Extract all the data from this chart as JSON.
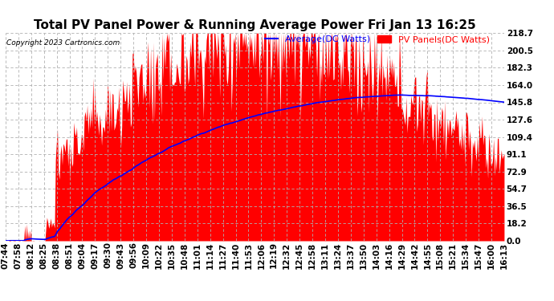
{
  "title": "Total PV Panel Power & Running Average Power Fri Jan 13 16:25",
  "copyright": "Copyright 2023 Cartronics.com",
  "legend_avg": "Average(DC Watts)",
  "legend_pv": "PV Panels(DC Watts)",
  "ylabel_right_ticks": [
    0.0,
    18.2,
    36.5,
    54.7,
    72.9,
    91.1,
    109.4,
    127.6,
    145.8,
    164.0,
    182.3,
    200.5,
    218.7
  ],
  "ymax": 218.7,
  "ymin": 0.0,
  "pv_color": "#ff0000",
  "avg_color": "#0000ff",
  "background_color": "#ffffff",
  "grid_color": "#b0b0b0",
  "tick_fontsize": 7.5,
  "x_tick_labels": [
    "07:44",
    "07:58",
    "08:12",
    "08:25",
    "08:38",
    "08:51",
    "09:04",
    "09:17",
    "09:30",
    "09:43",
    "09:56",
    "10:09",
    "10:22",
    "10:35",
    "10:48",
    "11:01",
    "11:14",
    "11:27",
    "11:40",
    "11:53",
    "12:06",
    "12:19",
    "12:32",
    "12:45",
    "12:58",
    "13:11",
    "13:24",
    "13:37",
    "13:50",
    "14:03",
    "14:16",
    "14:29",
    "14:42",
    "14:55",
    "15:08",
    "15:21",
    "15:34",
    "15:47",
    "16:00",
    "16:13"
  ]
}
